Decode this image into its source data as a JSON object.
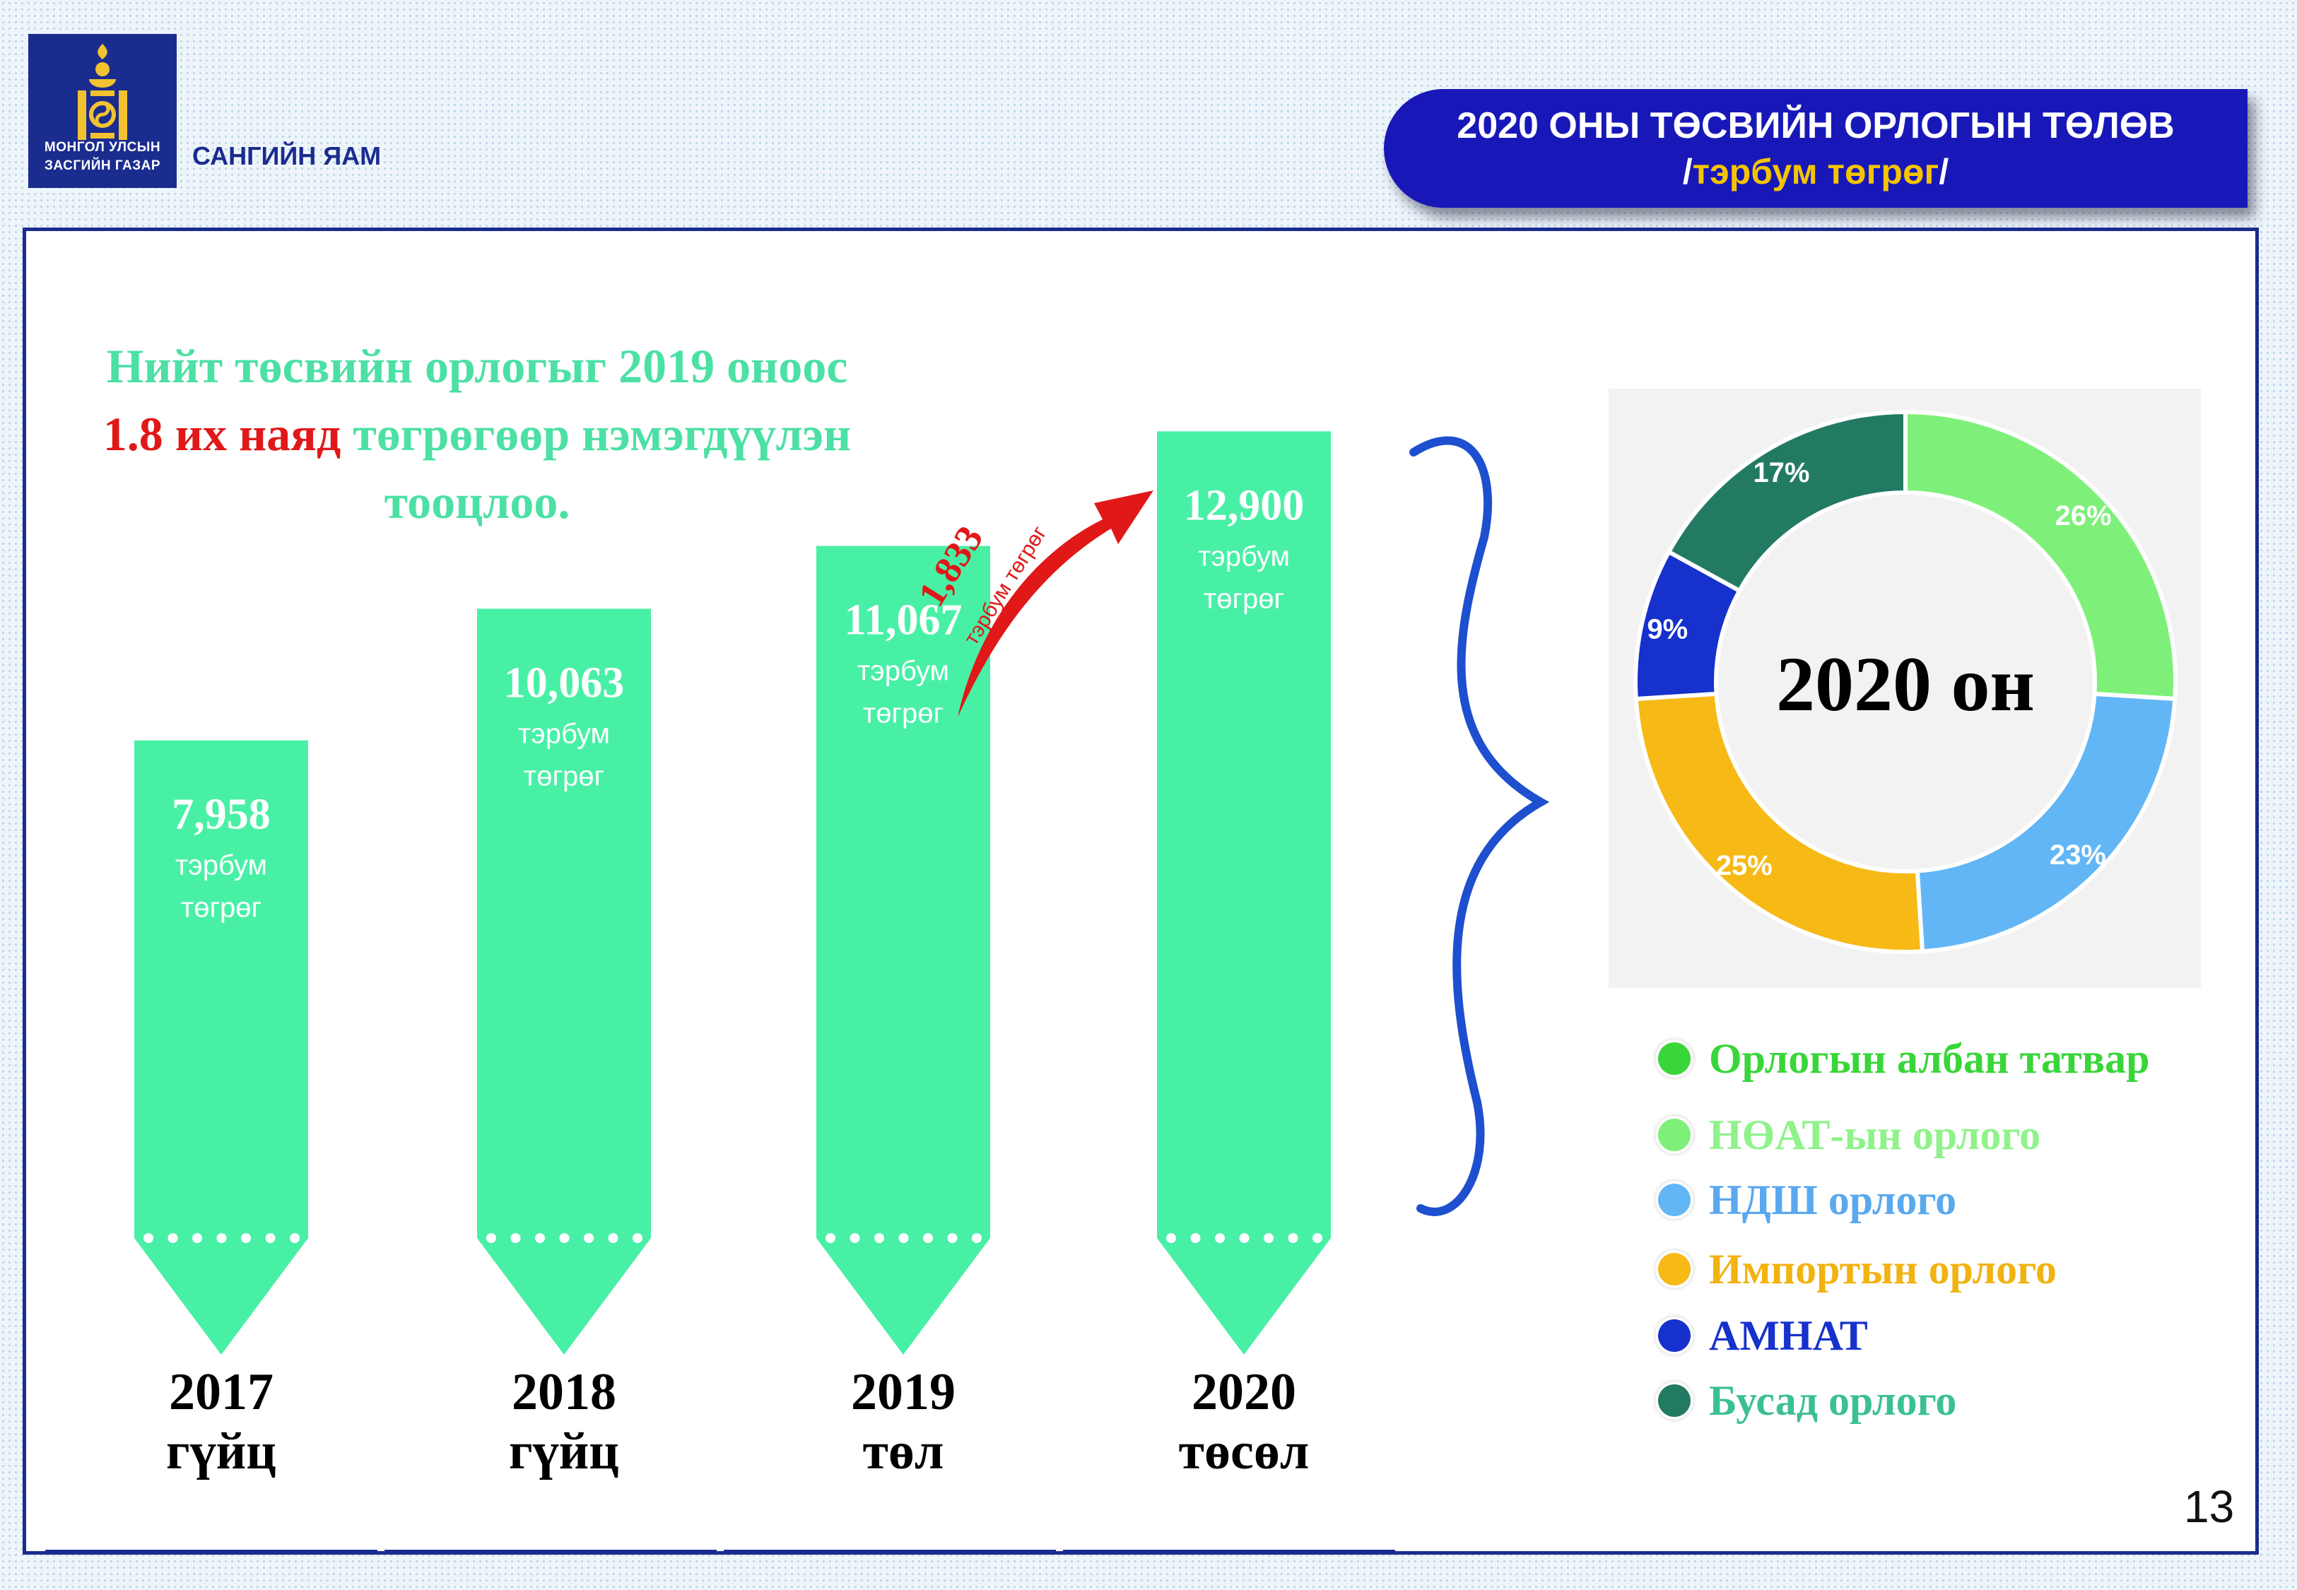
{
  "header": {
    "org_line1": "МОНГОЛ УЛСЫН",
    "org_line2": "ЗАСГИЙН ГАЗАР",
    "ministry": "САНГИЙН ЯАМ",
    "title_line1": "2020 ОНЫ ТӨСВИЙН ОРЛОГЫН ТӨЛӨВ",
    "title_unit_open": "/",
    "title_unit": "тэрбум төгрөг",
    "title_unit_close": "/"
  },
  "headline": {
    "part1": "Нийт төсвийн орлогыг 2019 оноос ",
    "highlight": "1.8 их наяд",
    "part2": " төгрөгөөр нэмэгдүүлэн тооцлоо."
  },
  "increase_arrow": {
    "value": "1,833",
    "unit": "тэрбум төгрөг"
  },
  "page_number": "13",
  "chart_data": [
    {
      "type": "bar",
      "categories": [
        "2017 гүйц",
        "2018 гүйц",
        "2019 төл",
        "2020 төсөл"
      ],
      "year_labels": [
        {
          "year": "2017",
          "status": "гүйц"
        },
        {
          "year": "2018",
          "status": "гүйц"
        },
        {
          "year": "2019",
          "status": "төл"
        },
        {
          "year": "2020",
          "status": "төсөл"
        }
      ],
      "values": [
        7958,
        10063,
        11067,
        12900
      ],
      "value_labels": [
        "7,958",
        "10,063",
        "11,067",
        "12,900"
      ],
      "unit_line1": "тэрбум",
      "unit_line2": "төгрөг",
      "color": "#48f0a6"
    },
    {
      "type": "pie",
      "center_label": "2020 он",
      "slices": [
        {
          "label": "Орлогын албан татвар",
          "pct_label": "",
          "value": 0,
          "color": "#39d639",
          "text_color": "#39d639"
        },
        {
          "label": "НӨАТ-ын орлого",
          "pct_label": "26%",
          "value": 26,
          "color": "#7ef07a",
          "text_color": "#8ff28a"
        },
        {
          "label": "НДШ орлого",
          "pct_label": "23%",
          "value": 23,
          "color": "#62b6f5",
          "text_color": "#5aa8ee"
        },
        {
          "label": "Импортын орлого",
          "pct_label": "25%",
          "value": 25,
          "color": "#f7b915",
          "text_color": "#f2b20f"
        },
        {
          "label": "АМНАТ",
          "pct_label": "9%",
          "value": 9,
          "color": "#1631cc",
          "text_color": "#1631cc"
        },
        {
          "label": "Бусад орлого",
          "pct_label": "17%",
          "value": 17,
          "color": "#237a63",
          "text_color": "#3bbf94"
        }
      ]
    }
  ]
}
